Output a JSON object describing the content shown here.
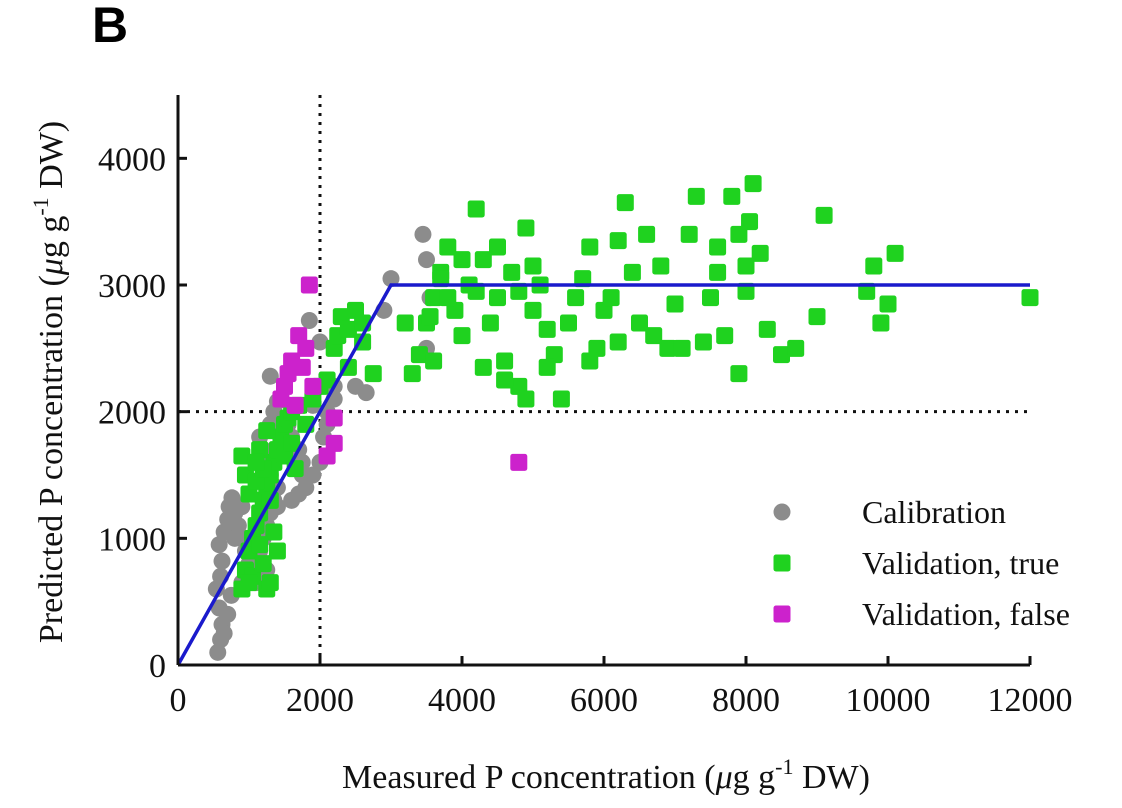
{
  "panel_label": "B",
  "chart_data": {
    "type": "scatter",
    "xlabel": {
      "main": "Measured P concentration (",
      "mu": "μ",
      "g": "g g",
      "exp": "-1",
      "unit": " DW)"
    },
    "ylabel": {
      "main": "Predicted P concentration (",
      "mu": "μ",
      "g": "g g",
      "exp": "-1",
      "unit": " DW)"
    },
    "xlim": [
      0,
      12000
    ],
    "ylim": [
      0,
      4500
    ],
    "xticks": [
      "0",
      "2000",
      "4000",
      "6000",
      "8000",
      "10000",
      "12000"
    ],
    "xtick_values": [
      0,
      2000,
      4000,
      6000,
      8000,
      10000,
      12000
    ],
    "yticks": [
      "0",
      "1000",
      "2000",
      "3000",
      "4000"
    ],
    "ytick_values": [
      0,
      1000,
      2000,
      3000,
      4000
    ],
    "reference_lines": {
      "vertical_x": 2000,
      "horizontal_y": 2000,
      "style": "dotted"
    },
    "fit_line": {
      "color": "#1a1acc",
      "points": [
        [
          0,
          0
        ],
        [
          3000,
          3000
        ],
        [
          12000,
          3000
        ]
      ]
    },
    "legend": {
      "position": "bottom-right",
      "entries": [
        {
          "label": "Calibration",
          "color": "#8c8c8c",
          "marker": "circle"
        },
        {
          "label": "Validation, true",
          "color": "#1fd21f",
          "marker": "square"
        },
        {
          "label": "Validation, false",
          "color": "#cc22cc",
          "marker": "square"
        }
      ]
    },
    "series": [
      {
        "name": "Calibration",
        "marker": "circle",
        "color": "#8c8c8c",
        "points": [
          [
            560,
            100
          ],
          [
            600,
            200
          ],
          [
            620,
            320
          ],
          [
            580,
            450
          ],
          [
            540,
            600
          ],
          [
            600,
            700
          ],
          [
            620,
            820
          ],
          [
            580,
            950
          ],
          [
            650,
            1050
          ],
          [
            700,
            1150
          ],
          [
            720,
            1250
          ],
          [
            760,
            1320
          ],
          [
            800,
            1200
          ],
          [
            850,
            1100
          ],
          [
            900,
            1000
          ],
          [
            950,
            900
          ],
          [
            1000,
            800
          ],
          [
            1050,
            700
          ],
          [
            1100,
            650
          ],
          [
            1150,
            900
          ],
          [
            1200,
            1000
          ],
          [
            1250,
            1100
          ],
          [
            1300,
            1200
          ],
          [
            1350,
            1300
          ],
          [
            1400,
            1400
          ],
          [
            1300,
            1500
          ],
          [
            1250,
            1600
          ],
          [
            1200,
            1700
          ],
          [
            1150,
            1800
          ],
          [
            1300,
            1900
          ],
          [
            1350,
            2000
          ],
          [
            1400,
            2080
          ],
          [
            1300,
            2280
          ],
          [
            1450,
            2100
          ],
          [
            1550,
            1900
          ],
          [
            1600,
            1800
          ],
          [
            1700,
            1700
          ],
          [
            1750,
            1500
          ],
          [
            1800,
            1400
          ],
          [
            1900,
            1500
          ],
          [
            2000,
            1600
          ],
          [
            2050,
            1800
          ],
          [
            2100,
            2000
          ],
          [
            2200,
            2100
          ],
          [
            1850,
            2720
          ],
          [
            2000,
            2550
          ],
          [
            2200,
            2200
          ],
          [
            2500,
            2200
          ],
          [
            2650,
            2150
          ],
          [
            2900,
            2800
          ],
          [
            3000,
            3050
          ],
          [
            3450,
            3400
          ],
          [
            3500,
            3200
          ],
          [
            3550,
            2900
          ],
          [
            3500,
            2500
          ],
          [
            650,
            250
          ],
          [
            700,
            400
          ],
          [
            750,
            550
          ],
          [
            900,
            650
          ],
          [
            1000,
            750
          ],
          [
            1100,
            820
          ],
          [
            1250,
            750
          ],
          [
            1400,
            1250
          ],
          [
            1600,
            1300
          ],
          [
            1700,
            1350
          ],
          [
            1750,
            1600
          ],
          [
            1900,
            2050
          ],
          [
            2100,
            1900
          ],
          [
            900,
            1250
          ],
          [
            800,
            1000
          ]
        ]
      },
      {
        "name": "Validation, true",
        "marker": "square",
        "color": "#1fd21f",
        "points": [
          [
            900,
            600
          ],
          [
            950,
            750
          ],
          [
            1000,
            900
          ],
          [
            1050,
            1000
          ],
          [
            1100,
            1100
          ],
          [
            1150,
            1200
          ],
          [
            1200,
            1300
          ],
          [
            1250,
            1400
          ],
          [
            1300,
            1500
          ],
          [
            1350,
            1600
          ],
          [
            1400,
            1700
          ],
          [
            1450,
            1800
          ],
          [
            1500,
            1900
          ],
          [
            1550,
            1950
          ],
          [
            1600,
            2000
          ],
          [
            1700,
            2050
          ],
          [
            1800,
            1900
          ],
          [
            900,
            1650
          ],
          [
            950,
            1500
          ],
          [
            1000,
            1350
          ],
          [
            1100,
            1450
          ],
          [
            1150,
            1700
          ],
          [
            1200,
            1550
          ],
          [
            1250,
            1850
          ],
          [
            1300,
            1300
          ],
          [
            1350,
            1050
          ],
          [
            1400,
            900
          ],
          [
            1150,
            950
          ],
          [
            1050,
            700
          ],
          [
            1000,
            650
          ],
          [
            1250,
            600
          ],
          [
            1300,
            650
          ],
          [
            1200,
            800
          ],
          [
            1100,
            1600
          ],
          [
            1500,
            1650
          ],
          [
            1600,
            1750
          ],
          [
            1650,
            1550
          ],
          [
            1900,
            2100
          ],
          [
            2000,
            2200
          ],
          [
            2100,
            2250
          ],
          [
            2200,
            2500
          ],
          [
            2250,
            2600
          ],
          [
            2300,
            2750
          ],
          [
            2400,
            2650
          ],
          [
            2500,
            2800
          ],
          [
            2600,
            2550
          ],
          [
            2750,
            2300
          ],
          [
            3300,
            2300
          ],
          [
            3400,
            2450
          ],
          [
            3500,
            2700
          ],
          [
            3600,
            2900
          ],
          [
            3700,
            3100
          ],
          [
            3800,
            3300
          ],
          [
            3900,
            2800
          ],
          [
            4000,
            2600
          ],
          [
            4100,
            3000
          ],
          [
            4200,
            3600
          ],
          [
            4300,
            3200
          ],
          [
            4400,
            2700
          ],
          [
            4500,
            3300
          ],
          [
            4600,
            2400
          ],
          [
            4700,
            3100
          ],
          [
            4800,
            2200
          ],
          [
            4900,
            3450
          ],
          [
            5000,
            2800
          ],
          [
            5100,
            3000
          ],
          [
            5200,
            2650
          ],
          [
            5300,
            2450
          ],
          [
            5400,
            2100
          ],
          [
            5500,
            2700
          ],
          [
            5600,
            2900
          ],
          [
            5700,
            3050
          ],
          [
            5800,
            3300
          ],
          [
            5900,
            2500
          ],
          [
            6000,
            2800
          ],
          [
            6100,
            2900
          ],
          [
            6200,
            3350
          ],
          [
            6300,
            3650
          ],
          [
            6400,
            3100
          ],
          [
            6500,
            2700
          ],
          [
            6600,
            3400
          ],
          [
            6700,
            2600
          ],
          [
            6800,
            3150
          ],
          [
            6900,
            2500
          ],
          [
            7000,
            2850
          ],
          [
            7200,
            3400
          ],
          [
            7300,
            3700
          ],
          [
            7400,
            2550
          ],
          [
            7500,
            2900
          ],
          [
            7600,
            3100
          ],
          [
            7700,
            2600
          ],
          [
            7800,
            3700
          ],
          [
            7900,
            2300
          ],
          [
            8000,
            2950
          ],
          [
            8050,
            3500
          ],
          [
            8100,
            3800
          ],
          [
            8200,
            3250
          ],
          [
            8300,
            2650
          ],
          [
            8500,
            2450
          ],
          [
            8700,
            2500
          ],
          [
            9000,
            2750
          ],
          [
            9100,
            3550
          ],
          [
            9700,
            2950
          ],
          [
            9800,
            3150
          ],
          [
            9900,
            2700
          ],
          [
            10000,
            2850
          ],
          [
            10100,
            3250
          ],
          [
            12000,
            2900
          ],
          [
            4300,
            2350
          ],
          [
            4600,
            2250
          ],
          [
            4900,
            2100
          ],
          [
            5200,
            2350
          ],
          [
            3600,
            2400
          ],
          [
            3700,
            3050
          ],
          [
            4000,
            3200
          ],
          [
            4500,
            2900
          ],
          [
            5000,
            3150
          ],
          [
            5800,
            2400
          ],
          [
            6200,
            2550
          ],
          [
            7100,
            2500
          ],
          [
            7600,
            3300
          ],
          [
            7900,
            3400
          ],
          [
            8000,
            3150
          ],
          [
            2400,
            2350
          ],
          [
            2600,
            2700
          ],
          [
            3200,
            2700
          ],
          [
            3550,
            2750
          ],
          [
            3800,
            2900
          ],
          [
            4200,
            2950
          ],
          [
            4800,
            2950
          ]
        ]
      },
      {
        "name": "Validation, false",
        "marker": "square",
        "color": "#cc22cc",
        "points": [
          [
            1850,
            3000
          ],
          [
            1800,
            2500
          ],
          [
            1750,
            2350
          ],
          [
            1700,
            2600
          ],
          [
            1600,
            2400
          ],
          [
            1500,
            2200
          ],
          [
            1450,
            2100
          ],
          [
            1550,
            2300
          ],
          [
            1650,
            2050
          ],
          [
            2100,
            1650
          ],
          [
            2200,
            1750
          ],
          [
            2200,
            1950
          ],
          [
            1900,
            2200
          ],
          [
            4800,
            1600
          ]
        ]
      }
    ]
  }
}
